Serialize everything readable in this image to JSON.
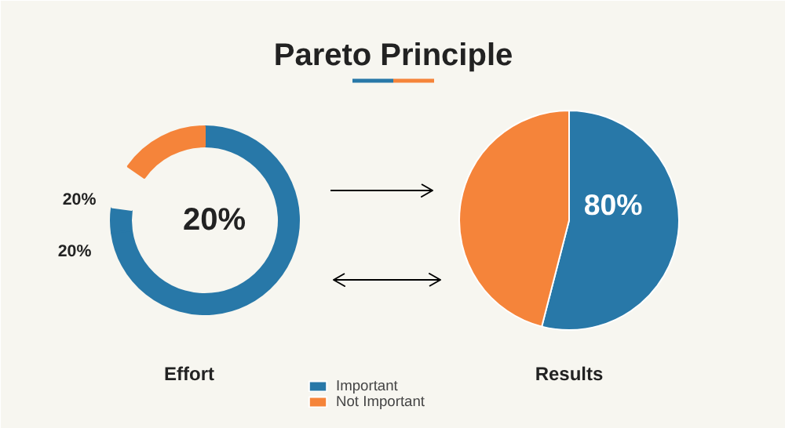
{
  "chart_data": [
    {
      "type": "donut",
      "title": "Pareto Principle",
      "xlabel": "Effort",
      "categories": [
        null,
        null,
        null,
        null
      ],
      "values": [
        72.8,
        4.4,
        7.5,
        15.3
      ],
      "colors": [
        "#2878a8",
        "#2878a8",
        "#f7f6f0",
        "#f5843a"
      ],
      "annotations": [
        "20%",
        "20%",
        "20%"
      ],
      "legend": false
    },
    {
      "type": "pie",
      "xlabel": "Results",
      "categories": [
        "Important",
        "Not Important"
      ],
      "values": [
        54,
        46
      ],
      "colors": [
        "#2878a8",
        "#f5843a"
      ],
      "annotations": [
        "80%"
      ],
      "legend": "bottom"
    }
  ]
}
